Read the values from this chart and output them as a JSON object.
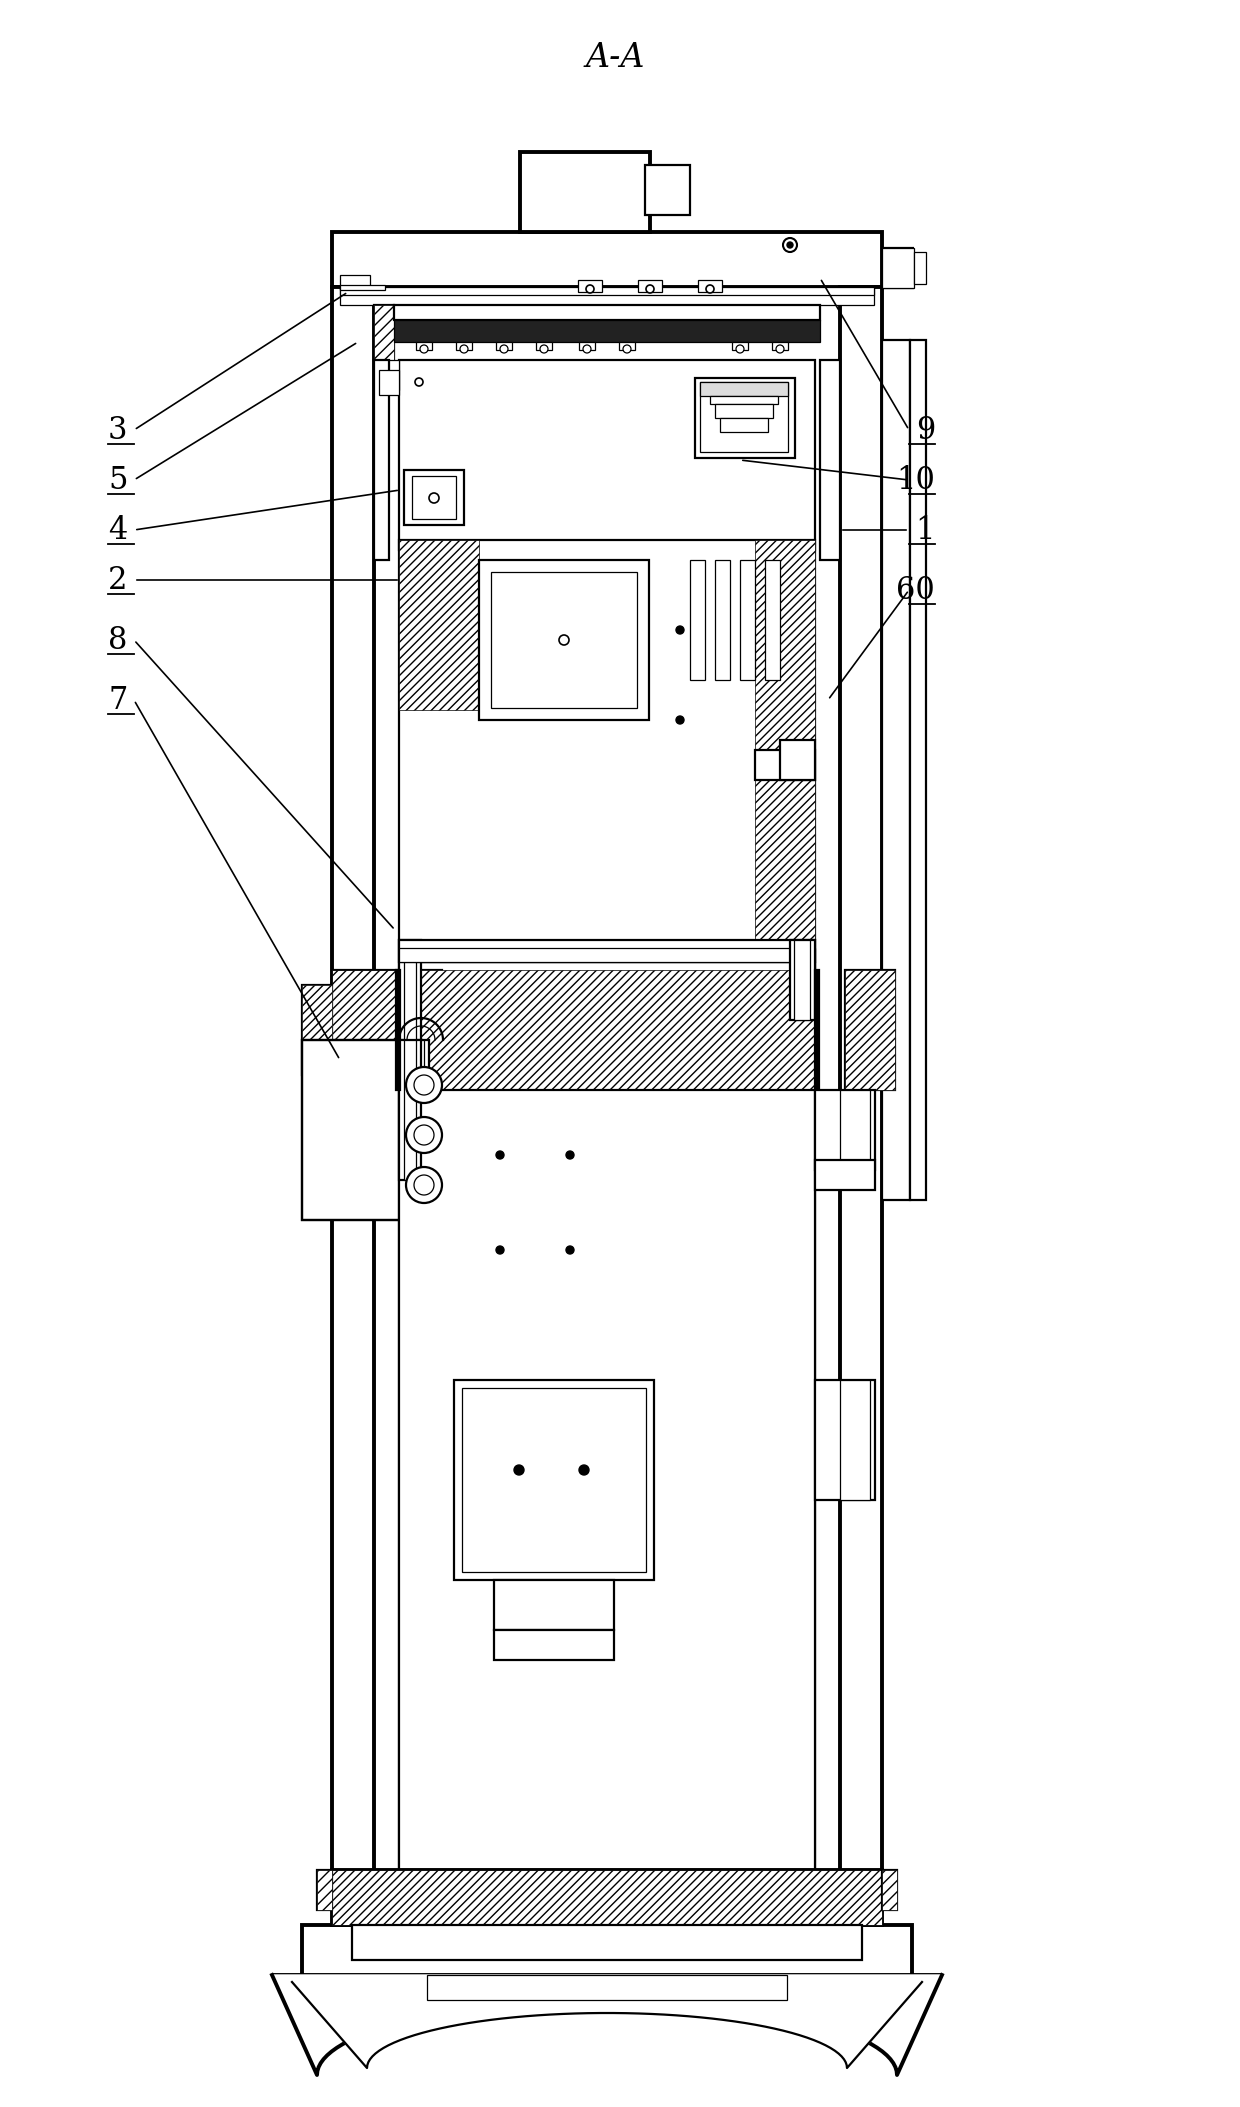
{
  "title": "A-A",
  "title_fontsize": 24,
  "background_color": "#ffffff",
  "line_color": "#000000",
  "lw_thick": 2.8,
  "lw_med": 1.6,
  "lw_thin": 0.9,
  "label_fontsize": 22,
  "labels_left": [
    {
      "text": "3",
      "xl": 108,
      "yl": 430,
      "xe": 348,
      "ye": 292
    },
    {
      "text": "5",
      "xl": 108,
      "yl": 480,
      "xe": 358,
      "ye": 342
    },
    {
      "text": "4",
      "xl": 108,
      "yl": 530,
      "xe": 400,
      "ye": 490
    },
    {
      "text": "2",
      "xl": 108,
      "yl": 580,
      "xe": 400,
      "ye": 580
    },
    {
      "text": "8",
      "xl": 108,
      "yl": 640,
      "xe": 395,
      "ye": 930
    },
    {
      "text": "7",
      "xl": 108,
      "yl": 700,
      "xe": 340,
      "ye": 1060
    }
  ],
  "labels_right": [
    {
      "text": "9",
      "xl": 935,
      "yl": 430,
      "xe": 820,
      "ye": 278
    },
    {
      "text": "10",
      "xl": 935,
      "yl": 480,
      "xe": 740,
      "ye": 460
    },
    {
      "text": "1",
      "xl": 935,
      "yl": 530,
      "xe": 840,
      "ye": 530
    },
    {
      "text": "60",
      "xl": 935,
      "yl": 590,
      "xe": 828,
      "ye": 700
    }
  ]
}
